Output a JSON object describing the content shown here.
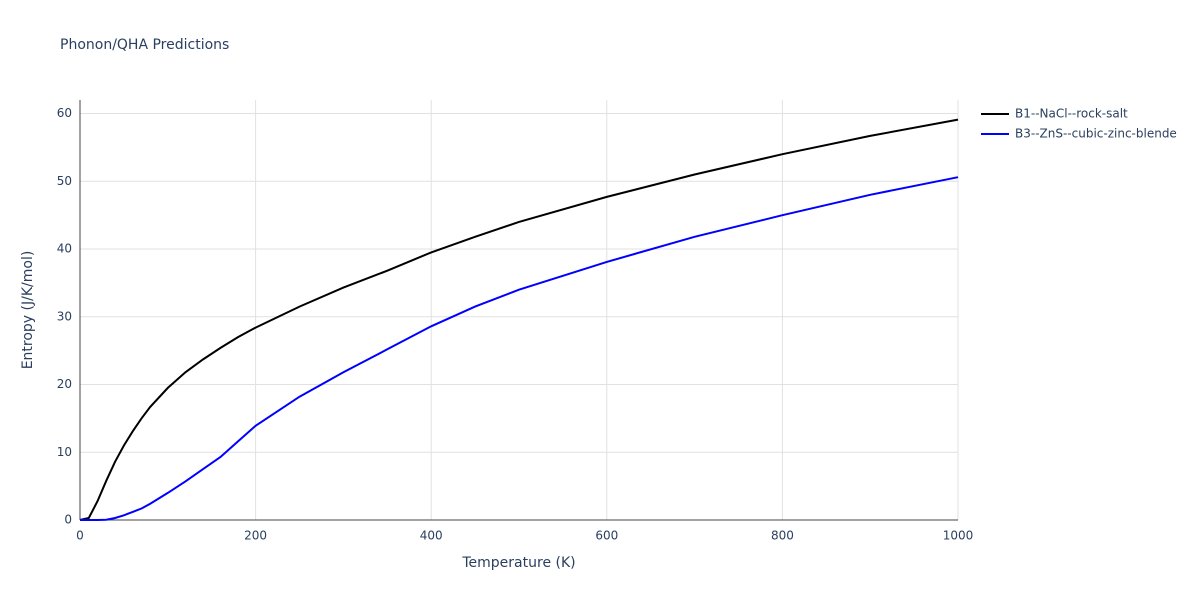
{
  "chart_data": {
    "type": "line",
    "title": "Phonon/QHA Predictions",
    "x_label": "Temperature (K)",
    "y_label": "Entropy (J/K/mol)",
    "x": [
      0,
      10,
      20,
      30,
      40,
      50,
      60,
      70,
      80,
      100,
      120,
      140,
      160,
      180,
      200,
      250,
      300,
      350,
      400,
      450,
      500,
      600,
      700,
      800,
      900,
      1000
    ],
    "series": [
      {
        "name": "B1--NaCl--rock-salt",
        "color": "#000000",
        "values": [
          0,
          0.3,
          2.8,
          5.8,
          8.6,
          11,
          13.1,
          15,
          16.7,
          19.5,
          21.8,
          23.7,
          25.4,
          27,
          28.4,
          31.5,
          34.3,
          36.8,
          39.5,
          41.8,
          44,
          47.7,
          51,
          54,
          56.7,
          59.1
        ]
      },
      {
        "name": "B3--ZnS--cubic-zinc-blende",
        "color": "#0000ff",
        "values": [
          0,
          0,
          0,
          0.05,
          0.3,
          0.7,
          1.2,
          1.7,
          2.4,
          4,
          5.7,
          7.5,
          9.3,
          11.6,
          13.9,
          18.2,
          21.8,
          25.2,
          28.6,
          31.5,
          34,
          38.1,
          41.8,
          45,
          48,
          50.6
        ]
      }
    ],
    "xlim": [
      0,
      1000
    ],
    "xticks": [
      0,
      200,
      400,
      600,
      800,
      1000
    ],
    "ylim": [
      0,
      62
    ],
    "yticks": [
      0,
      10,
      20,
      30,
      40,
      50,
      60
    ],
    "grid": true
  }
}
